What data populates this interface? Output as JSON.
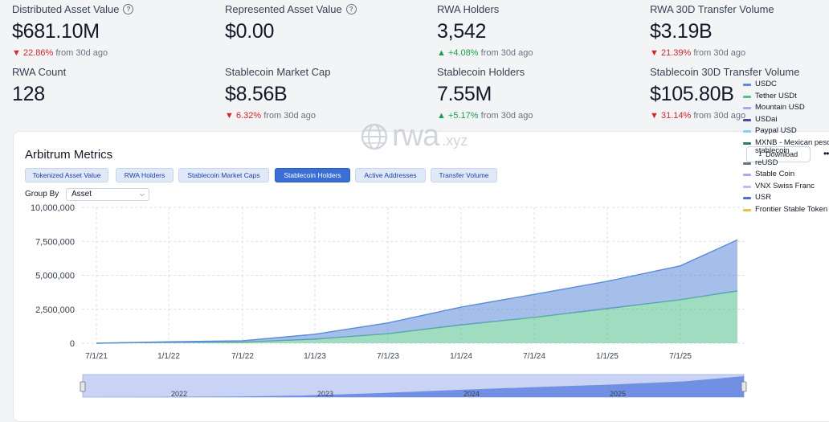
{
  "metrics": [
    {
      "label": "Distributed Asset Value",
      "help": true,
      "value": "$681.10M",
      "change_dir": "down",
      "change_pct": "22.86%",
      "change_suffix": "from 30d ago"
    },
    {
      "label": "Represented Asset Value",
      "help": true,
      "value": "$0.00"
    },
    {
      "label": "RWA Holders",
      "value": "3,542",
      "change_dir": "up",
      "change_pct": "+4.08%",
      "change_suffix": "from 30d ago"
    },
    {
      "label": "RWA 30D Transfer Volume",
      "value": "$3.19B",
      "change_dir": "down",
      "change_pct": "21.39%",
      "change_suffix": "from 30d ago"
    },
    {
      "label": "RWA Count",
      "value": "128"
    },
    {
      "label": "Stablecoin Market Cap",
      "value": "$8.56B",
      "change_dir": "down",
      "change_pct": "6.32%",
      "change_suffix": "from 30d ago"
    },
    {
      "label": "Stablecoin Holders",
      "value": "7.55M",
      "change_dir": "up",
      "change_pct": "+5.17%",
      "change_suffix": "from 30d ago"
    },
    {
      "label": "Stablecoin 30D Transfer Volume",
      "value": "$105.80B",
      "change_dir": "down",
      "change_pct": "31.14%",
      "change_suffix": "from 30d ago"
    }
  ],
  "card": {
    "title": "Arbitrum Metrics",
    "download_label": "Download",
    "more_label": "••",
    "tabs": [
      "Tokenized Asset Value",
      "RWA Holders",
      "Stablecoin Market Caps",
      "Stablecoin Holders",
      "Active Addresses",
      "Transfer Volume"
    ],
    "active_tab": "Stablecoin Holders",
    "group_by_label": "Group By",
    "group_by_value": "Asset",
    "watermark": "rwa",
    "watermark_suffix": ".xyz"
  },
  "colors": {
    "usdc": "#5b8bd9",
    "usdt": "#52c08a",
    "accent": "#3b6fd8",
    "down": "#dc2626",
    "up": "#16a34a"
  },
  "chart_data": {
    "type": "area",
    "stacked": true,
    "title": "Stablecoin Holders",
    "ylim": [
      0,
      10000000
    ],
    "yticks": [
      0,
      2500000,
      5000000,
      7500000,
      10000000
    ],
    "ytick_labels": [
      "0",
      "2,500,000",
      "5,000,000",
      "7,500,000",
      "10,000,000"
    ],
    "x": [
      "7/1/21",
      "1/1/22",
      "7/1/22",
      "1/1/23",
      "7/1/23",
      "1/1/24",
      "7/1/24",
      "1/1/25",
      "7/1/25",
      "9/1/25"
    ],
    "x_tick_labels": [
      "7/1/21",
      "1/1/22",
      "7/1/22",
      "1/1/23",
      "7/1/23",
      "1/1/24",
      "7/1/24",
      "1/1/25",
      "7/1/25"
    ],
    "series": [
      {
        "name": "Tether USDt",
        "color": "#52c08a",
        "values": [
          0,
          20000,
          80000,
          250000,
          700000,
          1300000,
          1900000,
          2500000,
          3200000,
          3800000
        ]
      },
      {
        "name": "USDC",
        "color": "#5b8bd9",
        "values": [
          0,
          30000,
          100000,
          350000,
          800000,
          1300000,
          1700000,
          2000000,
          2500000,
          3750000
        ]
      }
    ],
    "legend": [
      {
        "name": "USDC",
        "color": "#5b8bd9"
      },
      {
        "name": "Tether USDt",
        "color": "#52c08a"
      },
      {
        "name": "Mountain USD",
        "color": "#a5a6f6"
      },
      {
        "name": "USDai",
        "color": "#4b4ba0"
      },
      {
        "name": "Paypal USD",
        "color": "#7dd3fc"
      },
      {
        "name": "MXNB - Mexican peso stablecoin",
        "color": "#2e7d6b"
      },
      {
        "name": "reUSD",
        "color": "#6b7280"
      },
      {
        "name": "Stable Coin",
        "color": "#b0a4f5"
      },
      {
        "name": "VNX Swiss Franc",
        "color": "#c4b5fd"
      },
      {
        "name": "USR",
        "color": "#4f6fd8"
      },
      {
        "name": "Frontier Stable Token",
        "color": "#e8c547"
      }
    ],
    "navigator_year_labels": [
      "2022",
      "2023",
      "2024",
      "2025"
    ]
  }
}
